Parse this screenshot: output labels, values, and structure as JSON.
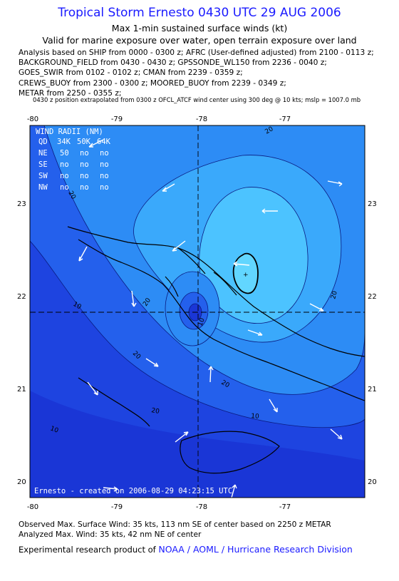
{
  "header": {
    "title": "Tropical Storm Ernesto 0430 UTC 29 AUG 2006",
    "subtitle1": "Max 1-min sustained surface winds (kt)",
    "subtitle2": "Valid for marine exposure over water, open terrain exposure over land"
  },
  "analysis_lines": [
    "Analysis based on  SHIP from 0000 - 0300 z;  AFRC (User-defined adjusted) from 2100 - 0113 z;",
    "BACKGROUND_FIELD from 0430 - 0430 z;  GPSSONDE_WL150 from 2236 - 0040 z;",
    "GOES_SWIR from 0102 - 0102 z;  CMAN from 2239 - 0359 z;",
    "CREWS_BUOY from 2300 - 0300 z;  MOORED_BUOY from 2239 - 0349 z;",
    "METAR from 2250 - 0355 z;"
  ],
  "position_note": "0430 z position extrapolated from 0300 z OFCL_ATCF wind center using 300 deg @ 10 kts; mslp = 1007.0 mb",
  "map": {
    "lon_ticks": [
      "-80",
      "-79",
      "-78",
      "-77"
    ],
    "lat_ticks": [
      "23",
      "22",
      "21",
      "20"
    ],
    "contour_labels": [
      "20",
      "20",
      "20",
      "20",
      "20",
      "20",
      "10",
      "10",
      "10",
      "20",
      "10"
    ],
    "wind_radii": {
      "title": "WIND RADII (NM)",
      "header": [
        "QD",
        "34K",
        "50K",
        "64K"
      ],
      "rows": [
        [
          "NE",
          "50",
          "no",
          "no"
        ],
        [
          "SE",
          "no",
          "no",
          "no"
        ],
        [
          "SW",
          "no",
          "no",
          "no"
        ],
        [
          "NW",
          "no",
          "no",
          "no"
        ]
      ]
    },
    "credit": "Ernesto - created on 2006-08-29 04:23:15 UTC",
    "colors": {
      "background": "#1e44e0",
      "band_low": "#1a36d6",
      "band_10": "#2460ec",
      "band_20": "#2d8cf5",
      "band_25": "#3aa9fb",
      "band_30": "#4cc3ff",
      "band_35": "#62d6ff",
      "coast": "#000000",
      "arrow": "#ffffff"
    }
  },
  "footer": {
    "observed": "Observed Max. Surface Wind: 35 kts, 113 nm SE of center based on 2250 z METAR",
    "analyzed": "Analyzed Max. Wind: 35 kts, 42 nm NE of center",
    "product_prefix": "Experimental research product of",
    "product_org": "NOAA / AOML / Hurricane Research Division"
  }
}
